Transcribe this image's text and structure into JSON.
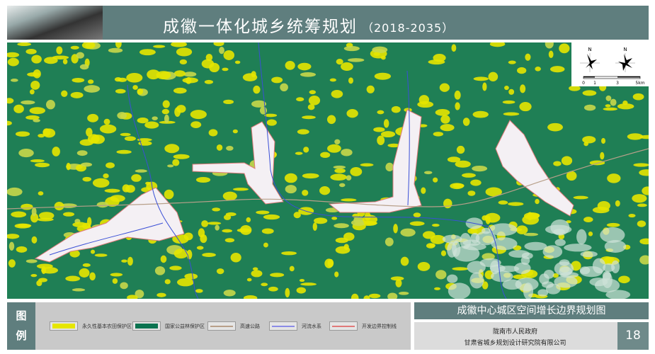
{
  "header": {
    "title": "成徽一体化城乡统筹规划",
    "years": "（2018-2035）"
  },
  "compass": {
    "north_label": "N",
    "scale_ticks": [
      "0",
      "1",
      "3",
      "5km"
    ]
  },
  "legend": {
    "label_top": "图",
    "label_bottom": "例",
    "items": [
      {
        "label": "永久性基本农田保护区",
        "type": "fill",
        "color": "#e6e600"
      },
      {
        "label": "国家公益林保护区",
        "type": "fill",
        "color": "#0b7350"
      },
      {
        "label": "高速公路",
        "type": "line",
        "color": "#b8a08a"
      },
      {
        "label": "河流水系",
        "type": "line",
        "color": "#8c8ce6"
      },
      {
        "label": "开发边界控制线",
        "type": "line",
        "color": "#e07a7a"
      }
    ]
  },
  "sheet": {
    "title": "成徽中心城区空间增长边界规划图",
    "org1": "陇南市人民政府",
    "org2": "甘肃省城乡规划设计研究院有限公司",
    "page": "18"
  },
  "colors": {
    "header": "#5f7e7e",
    "forest": "#1f7f55",
    "farmland": "#e6e600",
    "river": "#3a4fd6",
    "boundary": "#e07a7a"
  }
}
